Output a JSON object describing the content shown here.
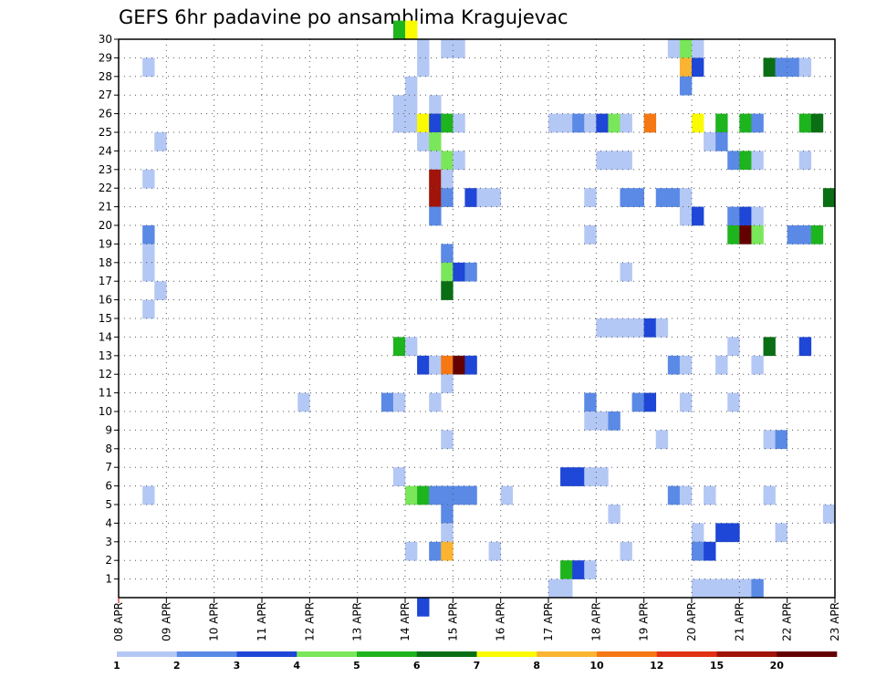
{
  "chart_data": {
    "type": "heatmap",
    "title": "GEFS 6hr padavine po ansamblima Kragujevac",
    "xlabel": "",
    "ylabel": "",
    "x_tick_labels": [
      "08 APR",
      "09 APR",
      "10 APR",
      "11 APR",
      "12 APR",
      "13 APR",
      "14 APR",
      "15 APR",
      "16 APR",
      "17 APR",
      "18 APR",
      "19 APR",
      "20 APR",
      "21 APR",
      "22 APR",
      "23 APR"
    ],
    "y_tick_labels": [
      "1",
      "2",
      "3",
      "4",
      "5",
      "6",
      "7",
      "8",
      "9",
      "10",
      "11",
      "12",
      "13",
      "14",
      "15",
      "16",
      "17",
      "18",
      "19",
      "20",
      "21",
      "22",
      "23",
      "24",
      "25",
      "26",
      "27",
      "28",
      "29",
      "30"
    ],
    "ylim": [
      0,
      30
    ],
    "x_steps_per_day": 4,
    "x_steps_total": 60,
    "grid": true,
    "colorbar": {
      "labels": [
        "1",
        "2",
        "3",
        "4",
        "5",
        "6",
        "7",
        "8",
        "10",
        "12",
        "15",
        "20"
      ],
      "colors": [
        "#b4c8f5",
        "#5a8ae6",
        "#1e46d7",
        "#7ae65a",
        "#1eb41e",
        "#0a6e14",
        "#fafa00",
        "#fab432",
        "#f57814",
        "#e13214",
        "#a0140a",
        "#640000"
      ]
    },
    "cells": [
      [
        23,
        30,
        5
      ],
      [
        24,
        30,
        7
      ],
      [
        25,
        29,
        1
      ],
      [
        27,
        29,
        1
      ],
      [
        28,
        29,
        1
      ],
      [
        46,
        29,
        1
      ],
      [
        47,
        29,
        4
      ],
      [
        48,
        29,
        1
      ],
      [
        2,
        28,
        1
      ],
      [
        25,
        28,
        1
      ],
      [
        47,
        28,
        8
      ],
      [
        48,
        28,
        3
      ],
      [
        54,
        28,
        6
      ],
      [
        55,
        28,
        2
      ],
      [
        56,
        28,
        2
      ],
      [
        57,
        28,
        1
      ],
      [
        24,
        27,
        1
      ],
      [
        47,
        27,
        2
      ],
      [
        23,
        26,
        1
      ],
      [
        24,
        26,
        1
      ],
      [
        26,
        26,
        1
      ],
      [
        23,
        25,
        1
      ],
      [
        24,
        25,
        1
      ],
      [
        25,
        25,
        7
      ],
      [
        26,
        25,
        3
      ],
      [
        27,
        25,
        5
      ],
      [
        28,
        25,
        1
      ],
      [
        36,
        25,
        1
      ],
      [
        37,
        25,
        1
      ],
      [
        38,
        25,
        2
      ],
      [
        39,
        25,
        1
      ],
      [
        40,
        25,
        3
      ],
      [
        41,
        25,
        4
      ],
      [
        42,
        25,
        1
      ],
      [
        44,
        25,
        9
      ],
      [
        48,
        25,
        7
      ],
      [
        50,
        25,
        5
      ],
      [
        52,
        25,
        5
      ],
      [
        53,
        25,
        2
      ],
      [
        57,
        25,
        5
      ],
      [
        58,
        25,
        6
      ],
      [
        3,
        24,
        1
      ],
      [
        25,
        24,
        1
      ],
      [
        26,
        24,
        4
      ],
      [
        49,
        24,
        1
      ],
      [
        50,
        24,
        2
      ],
      [
        26,
        23,
        1
      ],
      [
        27,
        23,
        4
      ],
      [
        28,
        23,
        1
      ],
      [
        40,
        23,
        1
      ],
      [
        41,
        23,
        1
      ],
      [
        42,
        23,
        1
      ],
      [
        51,
        23,
        2
      ],
      [
        52,
        23,
        5
      ],
      [
        53,
        23,
        1
      ],
      [
        57,
        23,
        1
      ],
      [
        2,
        22,
        1
      ],
      [
        26,
        22,
        11
      ],
      [
        27,
        22,
        1
      ],
      [
        26,
        21,
        11
      ],
      [
        27,
        21,
        2
      ],
      [
        29,
        21,
        3
      ],
      [
        30,
        21,
        1
      ],
      [
        31,
        21,
        1
      ],
      [
        39,
        21,
        1
      ],
      [
        42,
        21,
        2
      ],
      [
        43,
        21,
        2
      ],
      [
        45,
        21,
        2
      ],
      [
        46,
        21,
        2
      ],
      [
        47,
        21,
        1
      ],
      [
        59,
        21,
        6
      ],
      [
        26,
        20,
        2
      ],
      [
        47,
        20,
        1
      ],
      [
        48,
        20,
        3
      ],
      [
        51,
        20,
        2
      ],
      [
        52,
        20,
        3
      ],
      [
        53,
        20,
        1
      ],
      [
        2,
        19,
        2
      ],
      [
        39,
        19,
        1
      ],
      [
        51,
        19,
        5
      ],
      [
        52,
        19,
        12
      ],
      [
        53,
        19,
        4
      ],
      [
        56,
        19,
        2
      ],
      [
        57,
        19,
        2
      ],
      [
        58,
        19,
        5
      ],
      [
        2,
        18,
        1
      ],
      [
        27,
        18,
        2
      ],
      [
        2,
        17,
        1
      ],
      [
        27,
        17,
        4
      ],
      [
        28,
        17,
        3
      ],
      [
        29,
        17,
        2
      ],
      [
        42,
        17,
        1
      ],
      [
        3,
        16,
        1
      ],
      [
        27,
        16,
        6
      ],
      [
        2,
        15,
        1
      ],
      [
        40,
        14,
        1
      ],
      [
        41,
        14,
        1
      ],
      [
        42,
        14,
        1
      ],
      [
        43,
        14,
        1
      ],
      [
        44,
        14,
        3
      ],
      [
        45,
        14,
        1
      ],
      [
        23,
        13,
        5
      ],
      [
        24,
        13,
        1
      ],
      [
        51,
        13,
        1
      ],
      [
        54,
        13,
        6
      ],
      [
        57,
        13,
        3
      ],
      [
        25,
        12,
        3
      ],
      [
        26,
        12,
        1
      ],
      [
        27,
        12,
        9
      ],
      [
        28,
        12,
        12
      ],
      [
        29,
        12,
        3
      ],
      [
        46,
        12,
        2
      ],
      [
        47,
        12,
        1
      ],
      [
        50,
        12,
        1
      ],
      [
        53,
        12,
        1
      ],
      [
        27,
        11,
        1
      ],
      [
        15,
        10,
        1
      ],
      [
        22,
        10,
        2
      ],
      [
        23,
        10,
        1
      ],
      [
        26,
        10,
        1
      ],
      [
        39,
        10,
        2
      ],
      [
        43,
        10,
        2
      ],
      [
        44,
        10,
        3
      ],
      [
        47,
        10,
        1
      ],
      [
        51,
        10,
        1
      ],
      [
        39,
        9,
        1
      ],
      [
        40,
        9,
        1
      ],
      [
        41,
        9,
        2
      ],
      [
        27,
        8,
        1
      ],
      [
        45,
        8,
        1
      ],
      [
        54,
        8,
        1
      ],
      [
        55,
        8,
        2
      ],
      [
        23,
        6,
        1
      ],
      [
        37,
        6,
        3
      ],
      [
        38,
        6,
        3
      ],
      [
        39,
        6,
        1
      ],
      [
        40,
        6,
        1
      ],
      [
        2,
        5,
        1
      ],
      [
        24,
        5,
        4
      ],
      [
        25,
        5,
        5
      ],
      [
        26,
        5,
        2
      ],
      [
        27,
        5,
        2
      ],
      [
        28,
        5,
        2
      ],
      [
        29,
        5,
        2
      ],
      [
        32,
        5,
        1
      ],
      [
        46,
        5,
        2
      ],
      [
        47,
        5,
        1
      ],
      [
        49,
        5,
        1
      ],
      [
        54,
        5,
        1
      ],
      [
        27,
        4,
        2
      ],
      [
        41,
        4,
        1
      ],
      [
        59,
        4,
        1
      ],
      [
        27,
        3,
        1
      ],
      [
        48,
        3,
        1
      ],
      [
        50,
        3,
        3
      ],
      [
        51,
        3,
        3
      ],
      [
        55,
        3,
        1
      ],
      [
        24,
        2,
        1
      ],
      [
        26,
        2,
        2
      ],
      [
        27,
        2,
        8
      ],
      [
        31,
        2,
        1
      ],
      [
        42,
        2,
        1
      ],
      [
        48,
        2,
        2
      ],
      [
        49,
        2,
        3
      ],
      [
        37,
        1,
        5
      ],
      [
        38,
        1,
        3
      ],
      [
        39,
        1,
        1
      ],
      [
        36,
        0,
        1
      ],
      [
        37,
        0,
        1
      ],
      [
        48,
        0,
        1
      ],
      [
        49,
        0,
        1
      ],
      [
        50,
        0,
        1
      ],
      [
        51,
        0,
        1
      ],
      [
        52,
        0,
        1
      ],
      [
        53,
        0,
        2
      ],
      [
        25,
        -1,
        3
      ]
    ]
  }
}
